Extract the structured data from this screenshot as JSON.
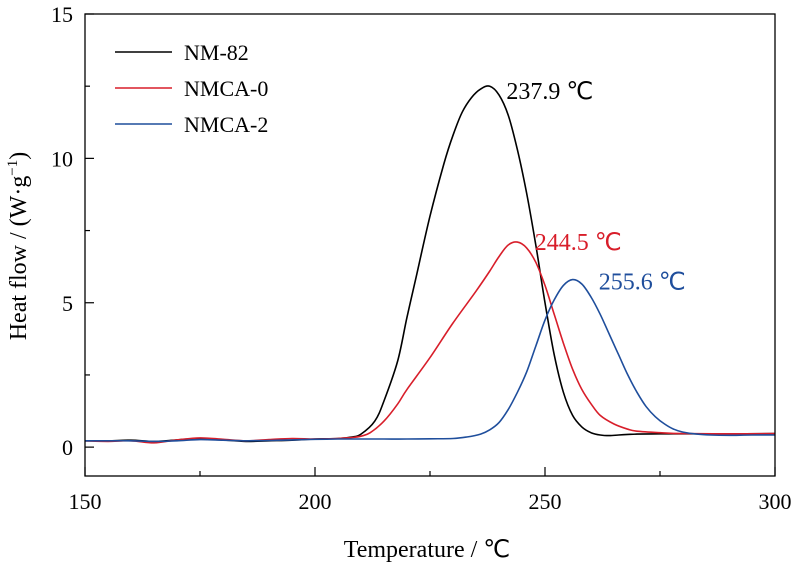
{
  "chart_data": {
    "type": "line",
    "xlabel": "Temperature / ℃",
    "ylabel_main": "Heat flow / (W·g",
    "ylabel_sup": "−1",
    "ylabel_close": ")",
    "xlim": [
      150,
      300
    ],
    "ylim": [
      -1,
      15
    ],
    "xticks": [
      150,
      200,
      250,
      300
    ],
    "yticks": [
      0,
      5,
      10,
      15
    ],
    "xtick_labels": [
      "150",
      "200",
      "250",
      "300"
    ],
    "ytick_labels": [
      "0",
      "5",
      "10",
      "15"
    ],
    "grid": false,
    "legend_position": "top-left",
    "series": [
      {
        "name": "NM-82",
        "color": "#000000",
        "x": [
          150,
          155,
          160,
          165,
          170,
          175,
          180,
          185,
          190,
          195,
          200,
          205,
          208,
          210,
          213,
          215,
          218,
          220,
          222,
          225,
          228,
          230,
          232,
          234,
          236,
          238,
          240,
          242,
          244,
          246,
          248,
          250,
          252,
          254,
          256,
          258,
          260,
          262,
          264,
          266,
          268,
          270,
          275,
          280,
          290,
          300
        ],
        "y": [
          0.22,
          0.22,
          0.24,
          0.2,
          0.25,
          0.3,
          0.25,
          0.2,
          0.22,
          0.24,
          0.28,
          0.3,
          0.35,
          0.45,
          0.9,
          1.6,
          3.0,
          4.5,
          5.9,
          8.0,
          9.8,
          10.8,
          11.6,
          12.1,
          12.4,
          12.5,
          12.2,
          11.5,
          10.3,
          8.8,
          7.0,
          5.0,
          3.2,
          1.9,
          1.1,
          0.7,
          0.5,
          0.42,
          0.4,
          0.42,
          0.44,
          0.45,
          0.46,
          0.46,
          0.46,
          0.47
        ]
      },
      {
        "name": "NMCA-0",
        "color": "#d81e2a",
        "x": [
          150,
          155,
          160,
          165,
          170,
          175,
          180,
          185,
          190,
          195,
          200,
          205,
          208,
          210,
          212,
          215,
          218,
          220,
          225,
          230,
          235,
          238,
          240,
          242,
          244,
          246,
          248,
          250,
          252,
          254,
          256,
          258,
          260,
          262,
          265,
          268,
          270,
          275,
          280,
          290,
          300
        ],
        "y": [
          0.22,
          0.2,
          0.22,
          0.15,
          0.25,
          0.32,
          0.27,
          0.22,
          0.26,
          0.3,
          0.28,
          0.3,
          0.33,
          0.38,
          0.5,
          0.9,
          1.5,
          2.0,
          3.1,
          4.3,
          5.4,
          6.1,
          6.6,
          7.0,
          7.1,
          6.9,
          6.4,
          5.6,
          4.6,
          3.6,
          2.7,
          2.0,
          1.5,
          1.1,
          0.8,
          0.62,
          0.55,
          0.5,
          0.47,
          0.46,
          0.47
        ]
      },
      {
        "name": "NMCA-2",
        "color": "#1f4e9c",
        "x": [
          150,
          155,
          160,
          165,
          170,
          175,
          180,
          185,
          190,
          195,
          200,
          205,
          210,
          215,
          220,
          225,
          230,
          233,
          236,
          238,
          240,
          242,
          244,
          246,
          248,
          250,
          252,
          254,
          256,
          258,
          260,
          262,
          264,
          266,
          268,
          270,
          272,
          274,
          276,
          278,
          280,
          283,
          286,
          290,
          295,
          300
        ],
        "y": [
          0.22,
          0.22,
          0.22,
          0.2,
          0.22,
          0.26,
          0.24,
          0.22,
          0.23,
          0.25,
          0.27,
          0.28,
          0.28,
          0.28,
          0.28,
          0.29,
          0.3,
          0.35,
          0.45,
          0.6,
          0.85,
          1.3,
          1.9,
          2.6,
          3.5,
          4.4,
          5.1,
          5.6,
          5.8,
          5.65,
          5.2,
          4.6,
          3.9,
          3.2,
          2.5,
          1.9,
          1.4,
          1.05,
          0.8,
          0.62,
          0.52,
          0.45,
          0.42,
          0.41,
          0.42,
          0.42
        ]
      }
    ],
    "annotations": [
      {
        "text": "237.9 ℃",
        "x": 237.9,
        "y": 12.5,
        "color": "#000000"
      },
      {
        "text": "244.5 ℃",
        "x": 244.5,
        "y": 7.1,
        "color": "#d81e2a"
      },
      {
        "text": "255.6 ℃",
        "x": 255.6,
        "y": 5.8,
        "color": "#1f4e9c"
      }
    ]
  }
}
